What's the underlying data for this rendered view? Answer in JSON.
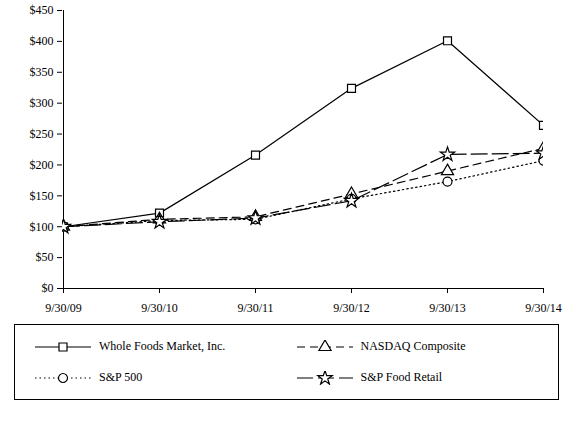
{
  "chart_data": {
    "type": "line",
    "categories": [
      "9/30/09",
      "9/30/10",
      "9/30/11",
      "9/30/12",
      "9/30/13",
      "9/30/14"
    ],
    "series": [
      {
        "name": "Whole Foods Market, Inc.",
        "color": "#000000",
        "marker": "square",
        "line_style": "solid",
        "values": [
          100,
          122,
          216,
          324,
          401,
          264
        ]
      },
      {
        "name": "NASDAQ Composite",
        "color": "#000000",
        "marker": "triangle",
        "line_style": "dashed",
        "values": [
          100,
          112,
          116,
          153,
          190,
          227
        ]
      },
      {
        "name": "S&P 500",
        "color": "#000000",
        "marker": "circle",
        "line_style": "dotted",
        "values": [
          100,
          110,
          112,
          145,
          173,
          207
        ]
      },
      {
        "name": "S&P Food Retail",
        "color": "#000000",
        "marker": "star",
        "line_style": "long-dash",
        "values": [
          100,
          108,
          114,
          142,
          217,
          219
        ]
      }
    ],
    "ylim": [
      0,
      450
    ],
    "yticks": [
      {
        "value": 0,
        "label": "$0"
      },
      {
        "value": 50,
        "label": "$50"
      },
      {
        "value": 100,
        "label": "$100"
      },
      {
        "value": 150,
        "label": "$150"
      },
      {
        "value": 200,
        "label": "$200"
      },
      {
        "value": 250,
        "label": "$250"
      },
      {
        "value": 300,
        "label": "$300"
      },
      {
        "value": 350,
        "label": "$350"
      },
      {
        "value": 400,
        "label": "$400"
      },
      {
        "value": 450,
        "label": "$450"
      }
    ],
    "grid": false,
    "legend": "bottom"
  }
}
